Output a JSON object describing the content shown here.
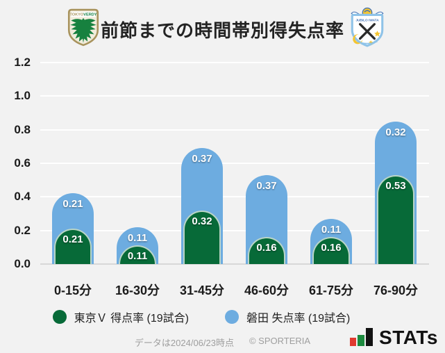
{
  "header": {
    "title": "前節までの時間帯別得失点率",
    "left_logo_text_1": "TOKYO",
    "left_logo_text_2": "VERDY",
    "right_logo_text": "JUBILO IWATA"
  },
  "chart_data": {
    "type": "bar",
    "stacked": true,
    "title": "前節までの時間帯別得失点率",
    "categories": [
      "0-15分",
      "16-30分",
      "31-45分",
      "46-60分",
      "61-75分",
      "76-90分"
    ],
    "series": [
      {
        "name": "東京Ｖ 得点率 (19試合)",
        "color": "#076a38",
        "values": [
          0.21,
          0.11,
          0.32,
          0.16,
          0.16,
          0.53
        ]
      },
      {
        "name": "磐田 失点率 (19試合)",
        "color": "#6dace0",
        "values": [
          0.21,
          0.11,
          0.37,
          0.37,
          0.11,
          0.32
        ]
      }
    ],
    "xlabel": "",
    "ylabel": "",
    "ylim": [
      0,
      1.2
    ],
    "yticks": [
      "1.2",
      "1.0",
      "0.8",
      "0.6",
      "0.4",
      "0.2",
      "0.0"
    ],
    "grid": true,
    "grid_color": "#ffffff",
    "baseline_color": "#d8d8d8",
    "background_color": "#f2f2f2",
    "legend_position": "bottom"
  },
  "footer": {
    "data_note": "データは2024/06/23時点",
    "copyright": "© SPORTERIA",
    "brand_text": "STATs",
    "brand_colors": {
      "red": "#e03a2f",
      "green": "#1c8a3e",
      "black": "#121212"
    }
  }
}
